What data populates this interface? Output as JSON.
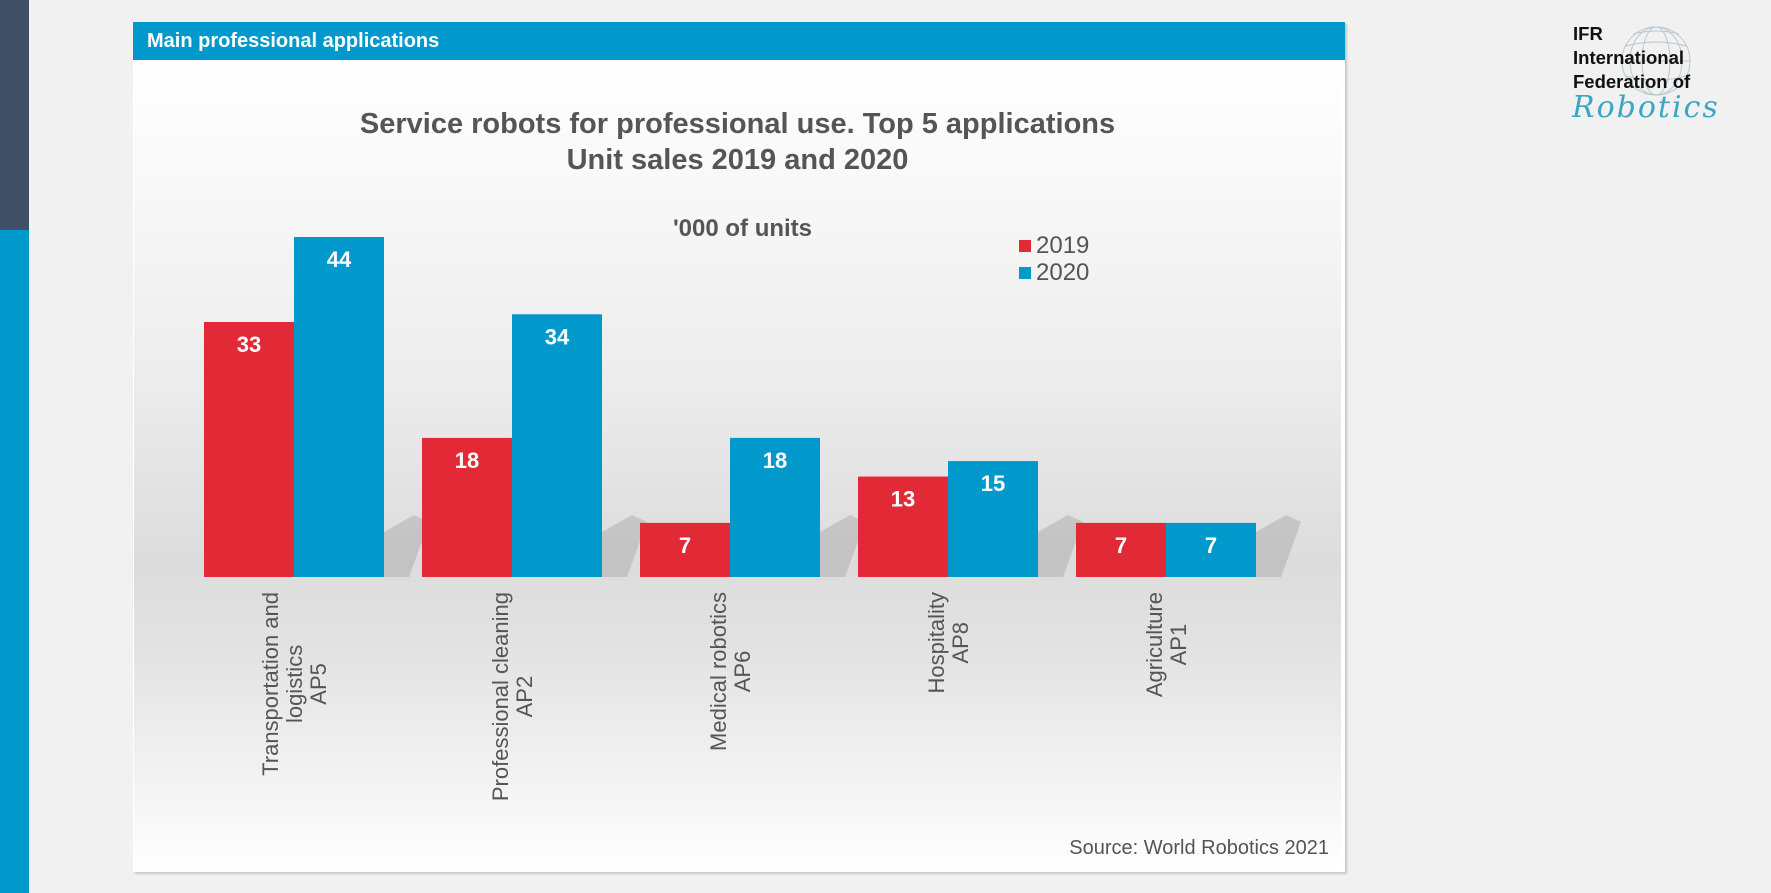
{
  "header": {
    "title": "Main professional applications"
  },
  "logo": {
    "lines": [
      "IFR",
      "International",
      "Federation of"
    ],
    "script": "Robotics"
  },
  "colors": {
    "series_2019": "#e22a36",
    "series_2020": "#0199cc",
    "header_bg": "#0199cc"
  },
  "source": "Source: World Robotics 2021",
  "chart_data": {
    "type": "bar",
    "title": [
      "Service robots for professional use. Top 5 applications",
      "Unit sales 2019 and 2020"
    ],
    "subtitle": "'000 of units",
    "xlabel": "",
    "ylabel": "'000 of units",
    "ylim": [
      0,
      44
    ],
    "grid": false,
    "legend_position": "top-right",
    "categories": [
      [
        "Transportation and",
        "logistics",
        "AP5"
      ],
      [
        "Professional cleaning",
        "AP2"
      ],
      [
        "Medical robotics",
        "AP6"
      ],
      [
        "Hospitality",
        "AP8"
      ],
      [
        "Agriculture",
        "AP1"
      ]
    ],
    "series": [
      {
        "name": "2019",
        "color": "#e22a36",
        "values": [
          33,
          18,
          7,
          13,
          7
        ]
      },
      {
        "name": "2020",
        "color": "#0199cc",
        "values": [
          44,
          34,
          18,
          15,
          7
        ]
      }
    ]
  }
}
